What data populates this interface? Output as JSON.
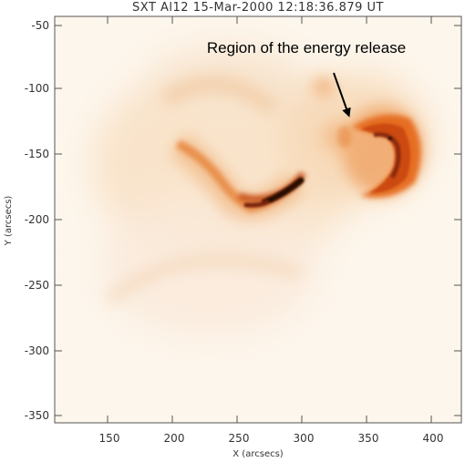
{
  "figure": {
    "title": "SXT Al12 15-Mar-2000 12:18:36.879 UT",
    "annotation": "Region of the energy release",
    "x_axis": {
      "label": "X (arcsecs)",
      "ticks": [
        "150",
        "200",
        "250",
        "300",
        "350",
        "400"
      ],
      "range": [
        108,
        422
      ]
    },
    "y_axis": {
      "label": "Y (arcsecs)",
      "ticks": [
        "-50",
        "-100",
        "-150",
        "-200",
        "-250",
        "-300",
        "-350"
      ],
      "range": [
        -362,
        -40
      ]
    },
    "colors": {
      "background": "#fdf6ec",
      "faint_glow": "#f6d7b4",
      "mid_glow": "#efa86a",
      "bright": "#e56a1e",
      "core": "#7a2410",
      "darkest": "#1a0804",
      "frame": "#555555"
    }
  }
}
